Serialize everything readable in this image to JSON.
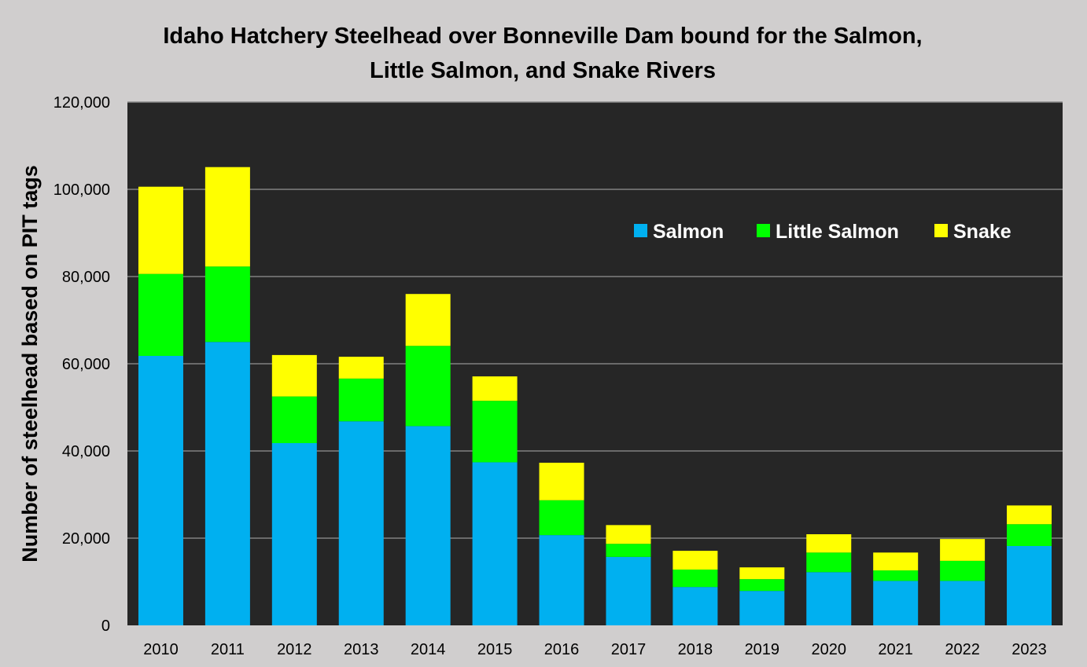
{
  "chart_data": {
    "type": "bar",
    "stacked": true,
    "title_lines": [
      "Idaho Hatchery Steelhead over Bonneville Dam bound for the Salmon,",
      "Little Salmon, and Snake Rivers"
    ],
    "xlabel": "",
    "ylabel": "Number of steelhead based on PIT tags",
    "ylim": [
      0,
      120000
    ],
    "yticks": [
      0,
      20000,
      40000,
      60000,
      80000,
      100000,
      120000
    ],
    "ytick_labels": [
      "0",
      "20,000",
      "40,000",
      "60,000",
      "80,000",
      "100,000",
      "120,000"
    ],
    "grid": true,
    "legend_position": "upper-right",
    "categories": [
      "2010",
      "2011",
      "2012",
      "2013",
      "2014",
      "2015",
      "2016",
      "2017",
      "2018",
      "2019",
      "2020",
      "2021",
      "2022",
      "2023"
    ],
    "series": [
      {
        "name": "Salmon",
        "color": "#00b0f0",
        "values": [
          61800,
          65000,
          41800,
          46800,
          45700,
          37400,
          20700,
          15700,
          8800,
          7900,
          12200,
          10200,
          10200,
          18200
        ]
      },
      {
        "name": "Little Salmon",
        "color": "#00ff00",
        "values": [
          18800,
          17300,
          10700,
          9800,
          18400,
          14100,
          8000,
          3000,
          4000,
          2700,
          4500,
          2400,
          4600,
          5000
        ]
      },
      {
        "name": "Snake",
        "color": "#ffff00",
        "values": [
          20000,
          22800,
          9500,
          5000,
          11900,
          5600,
          8600,
          4300,
          4300,
          2700,
          4200,
          4100,
          5000,
          4300
        ]
      }
    ],
    "colors": {
      "plot_background": "#262626",
      "page_background": "#d0cece",
      "gridline": "#808080",
      "legend_text": "#ffffff"
    }
  }
}
